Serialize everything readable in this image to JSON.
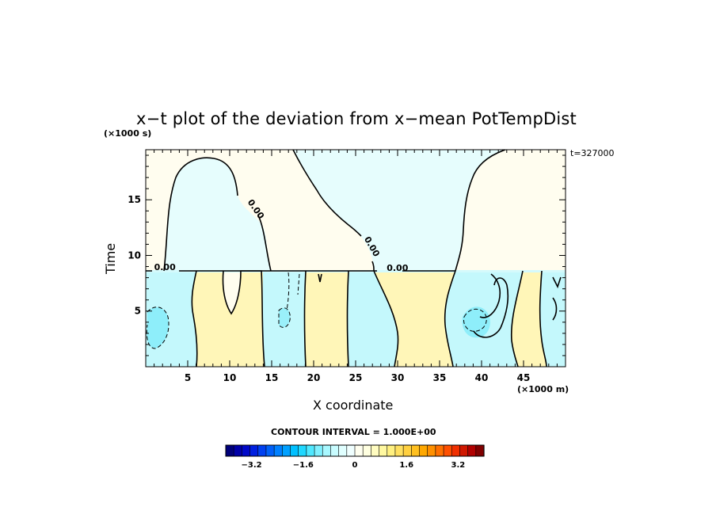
{
  "chart_data": {
    "type": "heatmap",
    "title": "x−t plot of the deviation from x−mean PotTempDist",
    "xlabel": "X coordinate",
    "ylabel": "Time",
    "x_unit": "(×1000 m)",
    "y_unit": "(×1000 s)",
    "time_annotation": "t=327000",
    "xlim": [
      0,
      50
    ],
    "ylim": [
      0,
      19.5
    ],
    "x_ticks": [
      5,
      10,
      15,
      20,
      25,
      30,
      35,
      40,
      45
    ],
    "y_ticks": [
      5,
      10,
      15
    ],
    "contour_interval_text": "CONTOUR INTERVAL = 1.000E+00",
    "contour_labels": [
      "0.00",
      "0.00",
      "0.00",
      "0.00"
    ],
    "colorbar": {
      "min": -4,
      "max": 4,
      "ticks": [
        "−3.2",
        "−1.6",
        "0",
        "1.6",
        "3.2"
      ],
      "tick_values": [
        -3.2,
        -1.6,
        0,
        1.6,
        3.2
      ],
      "colors": [
        "#00007a",
        "#0000a8",
        "#0008c8",
        "#0020e0",
        "#0040f0",
        "#0060f8",
        "#0080ff",
        "#00a0ff",
        "#00c0ff",
        "#20d8ff",
        "#50e8ff",
        "#80f0ff",
        "#a8f8ff",
        "#c8fcff",
        "#e0ffff",
        "#f0ffff",
        "#fffff0",
        "#ffffe0",
        "#fffcc0",
        "#fff8a0",
        "#fff080",
        "#ffe060",
        "#ffd040",
        "#ffc020",
        "#ffa800",
        "#ff9000",
        "#ff7000",
        "#ff5000",
        "#f03000",
        "#d01800",
        "#b00000",
        "#800000"
      ]
    }
  }
}
